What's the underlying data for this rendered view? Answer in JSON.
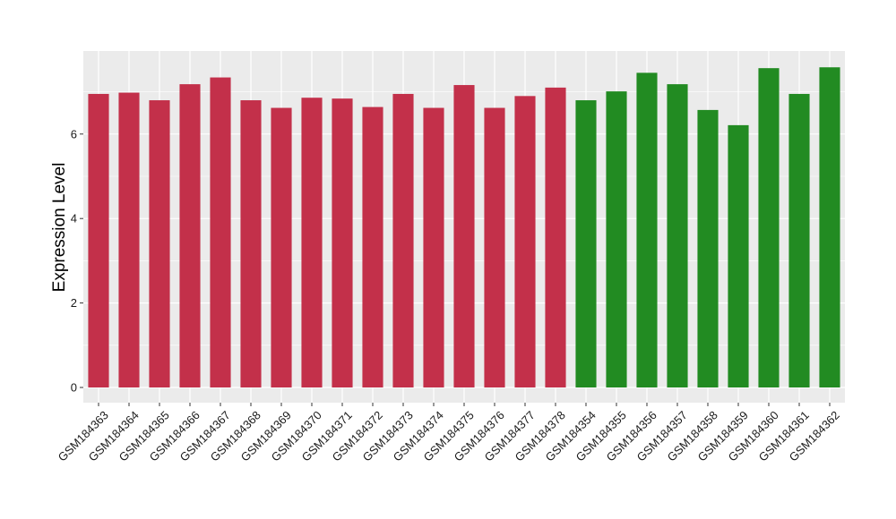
{
  "chart_data": {
    "type": "bar",
    "title": "",
    "xlabel": "",
    "ylabel": "Expression Level",
    "ylim": [
      0,
      8
    ],
    "yticks": [
      0,
      2,
      4,
      6
    ],
    "grid": true,
    "legend": "none",
    "panel_background": "#ebebeb",
    "grid_color": "#ffffff",
    "colors": {
      "group_1": "#c3304a",
      "group_2": "#228b22"
    },
    "categories": [
      "GSM184363",
      "GSM184364",
      "GSM184365",
      "GSM184366",
      "GSM184367",
      "GSM184368",
      "GSM184369",
      "GSM184370",
      "GSM184371",
      "GSM184372",
      "GSM184373",
      "GSM184374",
      "GSM184375",
      "GSM184376",
      "GSM184377",
      "GSM184378",
      "GSM184354",
      "GSM184355",
      "GSM184356",
      "GSM184357",
      "GSM184358",
      "GSM184359",
      "GSM184360",
      "GSM184361",
      "GSM184362"
    ],
    "values": [
      6.95,
      6.98,
      6.8,
      7.18,
      7.34,
      6.8,
      6.62,
      6.86,
      6.84,
      6.64,
      6.95,
      6.62,
      7.16,
      6.62,
      6.9,
      7.1,
      6.8,
      7.01,
      7.45,
      7.18,
      6.57,
      6.21,
      7.56,
      6.95,
      7.58
    ],
    "bar_groups": [
      "group_1",
      "group_1",
      "group_1",
      "group_1",
      "group_1",
      "group_1",
      "group_1",
      "group_1",
      "group_1",
      "group_1",
      "group_1",
      "group_1",
      "group_1",
      "group_1",
      "group_1",
      "group_1",
      "group_2",
      "group_2",
      "group_2",
      "group_2",
      "group_2",
      "group_2",
      "group_2",
      "group_2",
      "group_2"
    ]
  }
}
